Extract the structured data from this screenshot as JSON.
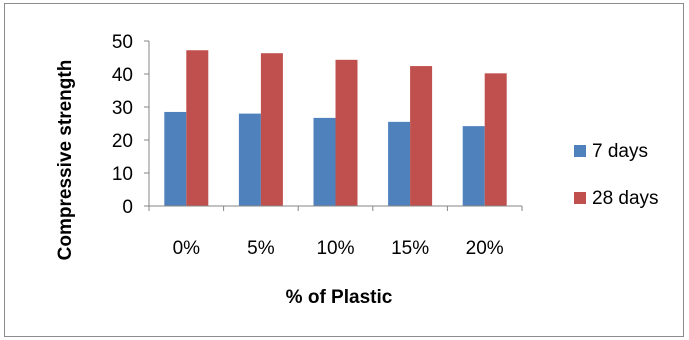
{
  "chart_data": {
    "type": "bar",
    "categories": [
      "0%",
      "5%",
      "10%",
      "15%",
      "20%"
    ],
    "series": [
      {
        "name": "7 days",
        "values": [
          28.5,
          28,
          26.7,
          25.5,
          24.2
        ],
        "color": "#4f81bd"
      },
      {
        "name": "28 days",
        "values": [
          47.2,
          46.3,
          44.3,
          42.4,
          40.2
        ],
        "color": "#c0504d"
      }
    ],
    "title": "",
    "xlabel": "% of Plastic",
    "ylabel": "Compressive strength",
    "ylim": [
      0,
      50
    ],
    "yticks": [
      "0",
      "10",
      "20",
      "30",
      "40",
      "50"
    ],
    "grid": false,
    "legend": "right"
  }
}
